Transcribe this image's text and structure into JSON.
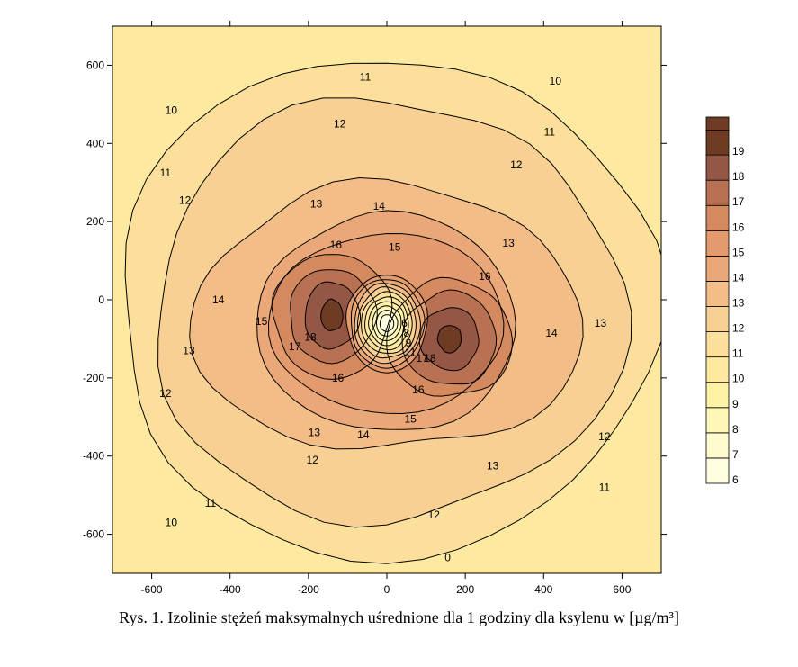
{
  "caption": "Rys. 1. Izolinie stężeń maksymalnych uśrednione dla 1 godziny dla ksylenu w [µg/m³]",
  "chart_data": {
    "type": "contour",
    "xlim": [
      -700,
      700
    ],
    "ylim": [
      -700,
      700
    ],
    "x_ticks": [
      -600,
      -400,
      -200,
      0,
      200,
      400,
      600
    ],
    "y_ticks": [
      600,
      400,
      200,
      0,
      -200,
      -400,
      -600
    ],
    "grid": false,
    "legend_position": "right",
    "levels": [
      6,
      7,
      8,
      9,
      10,
      11,
      12,
      13,
      14,
      15,
      16,
      17,
      18,
      19
    ],
    "level_colors": [
      "#fffde0",
      "#fffbcc",
      "#fff7b8",
      "#fff1a6",
      "#fde9a0",
      "#fbdf9a",
      "#f8d093",
      "#f3bd87",
      "#eaa878",
      "#e39a6c",
      "#d4895e",
      "#b87152",
      "#955745",
      "#6e3b24"
    ],
    "sources": [
      {
        "x": -140,
        "y": -40,
        "peak": 19.3
      },
      {
        "x": 160,
        "y": -100,
        "peak": 19.0
      },
      {
        "x": 0,
        "y": -60,
        "trough": 5.0
      }
    ],
    "contour_labels": [
      {
        "text": "11",
        "x": -55,
        "y": 570
      },
      {
        "text": "10",
        "x": 430,
        "y": 560
      },
      {
        "text": "10",
        "x": -550,
        "y": 485
      },
      {
        "text": "12",
        "x": -120,
        "y": 450
      },
      {
        "text": "11",
        "x": 415,
        "y": 430
      },
      {
        "text": "11",
        "x": -565,
        "y": 325
      },
      {
        "text": "12",
        "x": 330,
        "y": 345
      },
      {
        "text": "12",
        "x": -515,
        "y": 255
      },
      {
        "text": "13",
        "x": -180,
        "y": 245
      },
      {
        "text": "14",
        "x": -20,
        "y": 240
      },
      {
        "text": "16",
        "x": -130,
        "y": 140
      },
      {
        "text": "15",
        "x": 20,
        "y": 135
      },
      {
        "text": "13",
        "x": 310,
        "y": 145
      },
      {
        "text": "16",
        "x": 250,
        "y": 60
      },
      {
        "text": "14",
        "x": -430,
        "y": 0
      },
      {
        "text": "15",
        "x": -320,
        "y": -55
      },
      {
        "text": "13",
        "x": 545,
        "y": -60
      },
      {
        "text": "14",
        "x": 420,
        "y": -85
      },
      {
        "text": "18",
        "x": -195,
        "y": -95
      },
      {
        "text": "17",
        "x": -235,
        "y": -120
      },
      {
        "text": "6",
        "x": 45,
        "y": -60
      },
      {
        "text": "8",
        "x": 50,
        "y": -85
      },
      {
        "text": "9",
        "x": 55,
        "y": -110
      },
      {
        "text": "11",
        "x": 60,
        "y": -135
      },
      {
        "text": "17",
        "x": 90,
        "y": -150
      },
      {
        "text": "18",
        "x": 110,
        "y": -150
      },
      {
        "text": "13",
        "x": -505,
        "y": -130
      },
      {
        "text": "16",
        "x": -125,
        "y": -200
      },
      {
        "text": "16",
        "x": 80,
        "y": -230
      },
      {
        "text": "12",
        "x": -565,
        "y": -240
      },
      {
        "text": "15",
        "x": 60,
        "y": -305
      },
      {
        "text": "13",
        "x": -185,
        "y": -340
      },
      {
        "text": "14",
        "x": -60,
        "y": -345
      },
      {
        "text": "12",
        "x": 555,
        "y": -350
      },
      {
        "text": "12",
        "x": -190,
        "y": -410
      },
      {
        "text": "13",
        "x": 270,
        "y": -425
      },
      {
        "text": "11",
        "x": 555,
        "y": -480
      },
      {
        "text": "11",
        "x": -450,
        "y": -520
      },
      {
        "text": "12",
        "x": 120,
        "y": -550
      },
      {
        "text": "10",
        "x": -550,
        "y": -570
      },
      {
        "text": "0",
        "x": 155,
        "y": -660
      }
    ],
    "colors": {
      "line": "#000000",
      "legend_border": "#000000"
    }
  }
}
